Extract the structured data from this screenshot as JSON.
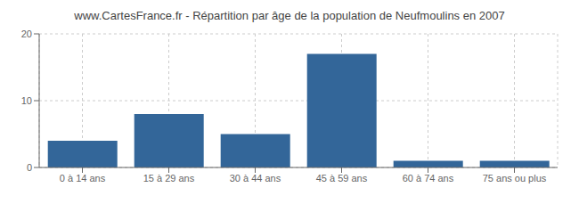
{
  "chart_data": {
    "type": "bar",
    "title": "www.CartesFrance.fr - Répartition par âge de la population de Neufmoulins en 2007",
    "categories": [
      "0 à 14 ans",
      "15 à 29 ans",
      "30 à 44 ans",
      "45 à 59 ans",
      "60 à 74 ans",
      "75 ans ou plus"
    ],
    "values": [
      4,
      8,
      5,
      17,
      1,
      1
    ],
    "color": "#336699",
    "ylim": [
      0,
      20
    ],
    "yticks": [
      0,
      10,
      20
    ],
    "grid": true
  }
}
